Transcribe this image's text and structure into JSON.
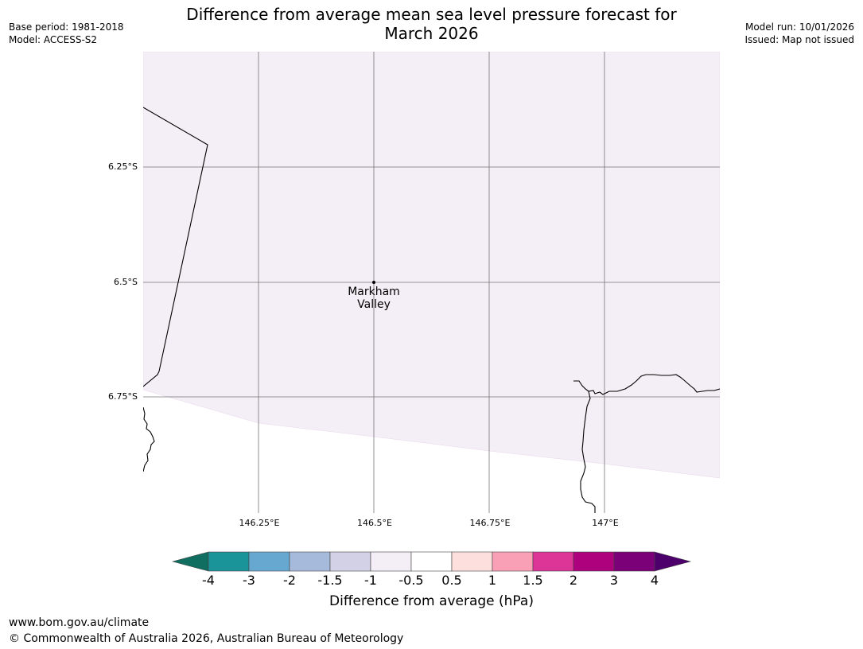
{
  "header": {
    "title_line1": "Difference from average mean sea level pressure forecast for",
    "title_line2": "March 2026",
    "base_period": "Base period: 1981-2018",
    "model": "Model: ACCESS-S2",
    "model_run": "Model run: 10/01/2026",
    "issued": "Issued: Map not issued"
  },
  "map": {
    "lat_labels": [
      "6.25°S",
      "6.5°S",
      "6.75°S"
    ],
    "lon_labels": [
      "146.25°E",
      "146.5°E",
      "146.75°E",
      "147°E"
    ],
    "place": {
      "name_line1": "Markham",
      "name_line2": "Valley"
    },
    "field_color": "#f4eef6",
    "field_value_range_hPa": [
      -1,
      -0.5
    ]
  },
  "legend": {
    "title": "Difference from average (hPa)",
    "ticks": [
      "-4",
      "-3",
      "-2",
      "-1.5",
      "-1",
      "-0.5",
      "0.5",
      "1",
      "1.5",
      "2",
      "3",
      "4"
    ],
    "bins": [
      {
        "range": "< -4",
        "color": "#0f6e60"
      },
      {
        "range": "-4 to -3",
        "color": "#1a9399"
      },
      {
        "range": "-3 to -2",
        "color": "#66a8d0"
      },
      {
        "range": "-2 to -1.5",
        "color": "#a6bbdb"
      },
      {
        "range": "-1.5 to -1",
        "color": "#d2d1e6"
      },
      {
        "range": "-1 to -0.5",
        "color": "#f4eef6"
      },
      {
        "range": "-0.5 to 0.5",
        "color": "#ffffff"
      },
      {
        "range": "0.5 to 1",
        "color": "#fde0dd"
      },
      {
        "range": "1 to 1.5",
        "color": "#f99fb6"
      },
      {
        "range": "1.5 to 2",
        "color": "#dd3497"
      },
      {
        "range": "2 to 3",
        "color": "#ae017e"
      },
      {
        "range": "3 to 4",
        "color": "#7a0177"
      },
      {
        "range": "> 4",
        "color": "#4d006b"
      }
    ]
  },
  "footer": {
    "url": "www.bom.gov.au/climate",
    "copyright": "© Commonwealth of Australia 2026, Australian Bureau of Meteorology"
  }
}
